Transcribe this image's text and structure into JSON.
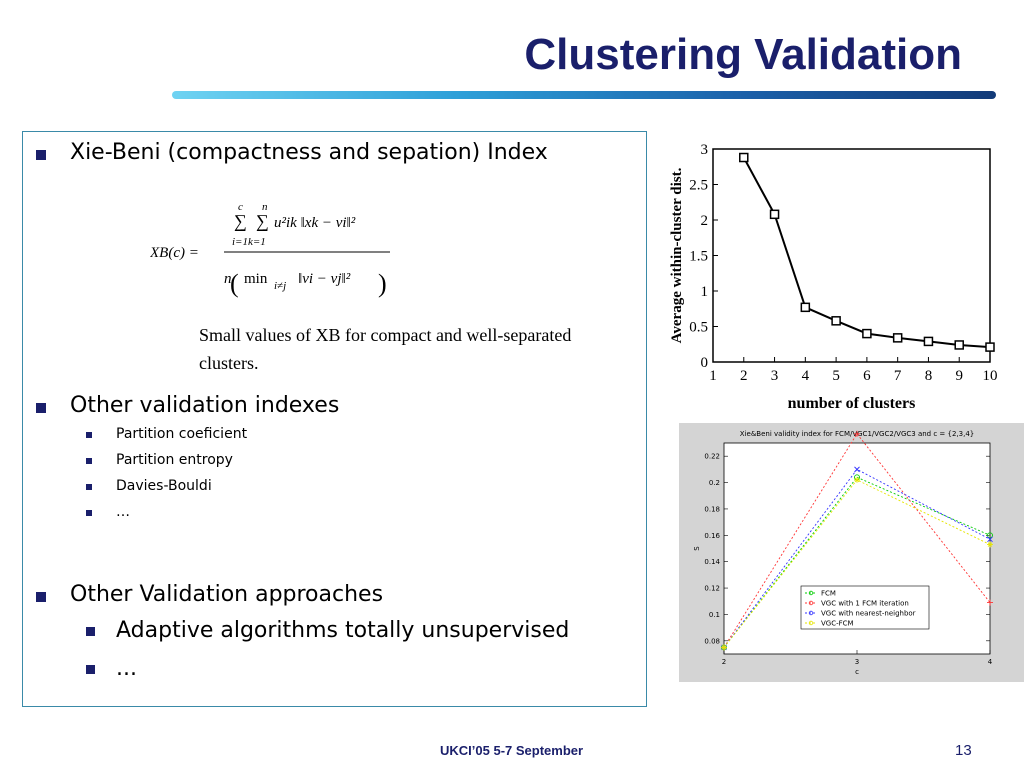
{
  "slide": {
    "title": "Clustering Validation",
    "footer": "UKCI’05 5-7 September",
    "page_number": "13"
  },
  "bullets": {
    "xb": "Xie-Beni (compactness and sepation) Index",
    "xb_note": "Small values of XB for compact and well-separated clusters.",
    "other_indexes": "Other validation indexes",
    "indexes": [
      "Partition coeficient",
      "Partition entropy",
      "Davies-Bouldi",
      "…"
    ],
    "other_approaches": "Other Validation approaches",
    "approaches": [
      "Adaptive algorithms totally unsupervised",
      "..."
    ]
  },
  "formula": {
    "lhs": "XB(c) =",
    "sum_i_top": "c",
    "sum_k_top": "n",
    "sum_bottom": "i=1k=1",
    "numerator": "u²ik ‖xk − vi‖²",
    "denominator_n": "n",
    "denominator_min": "min",
    "denominator_sub": "i≠j",
    "denominator_norm": "‖vi − vj‖²"
  },
  "chart_data": [
    {
      "type": "line",
      "title": "",
      "xlabel": "number of clusters",
      "ylabel": "Average within-cluster dist.",
      "x": [
        2,
        3,
        4,
        5,
        6,
        7,
        8,
        9,
        10
      ],
      "y": [
        2.88,
        2.08,
        0.77,
        0.58,
        0.4,
        0.34,
        0.29,
        0.24,
        0.21
      ],
      "xlim": [
        1,
        10
      ],
      "ylim": [
        0,
        3
      ],
      "xticks": [
        "1",
        "2",
        "3",
        "4",
        "5",
        "6",
        "7",
        "8",
        "9",
        "10"
      ],
      "yticks": [
        "0",
        "0.5",
        "1",
        "1.5",
        "2",
        "2.5",
        "3"
      ],
      "marker": "square",
      "grid": false
    },
    {
      "type": "line",
      "title": "Xie&Beni validity index for FCM/VGC1/VGC2/VGC3 and c = {2,3,4}",
      "xlabel": "c",
      "ylabel": "S",
      "categories": [
        "2",
        "3",
        "4"
      ],
      "x": [
        2,
        3,
        4
      ],
      "xlim": [
        2,
        4
      ],
      "ylim": [
        0.07,
        0.23
      ],
      "yticks": [
        "0.08",
        "0.1",
        "0.12",
        "0.14",
        "0.16",
        "0.18",
        "0.2",
        "0.22"
      ],
      "legend_position": "bottom-center",
      "series": [
        {
          "name": "FCM",
          "values": [
            0.075,
            0.204,
            0.16
          ],
          "color": "#00cc00",
          "marker": "o"
        },
        {
          "name": "VGC with 1 FCM iteration",
          "values": [
            0.075,
            0.237,
            0.109
          ],
          "color": "#ff3333",
          "marker": "+"
        },
        {
          "name": "VGC with nearest-neighbor",
          "values": [
            0.075,
            0.21,
            0.157
          ],
          "color": "#3333ff",
          "marker": "x"
        },
        {
          "name": "VGC-FCM",
          "values": [
            0.075,
            0.202,
            0.153
          ],
          "color": "#e6e600",
          "marker": "*"
        }
      ]
    }
  ]
}
